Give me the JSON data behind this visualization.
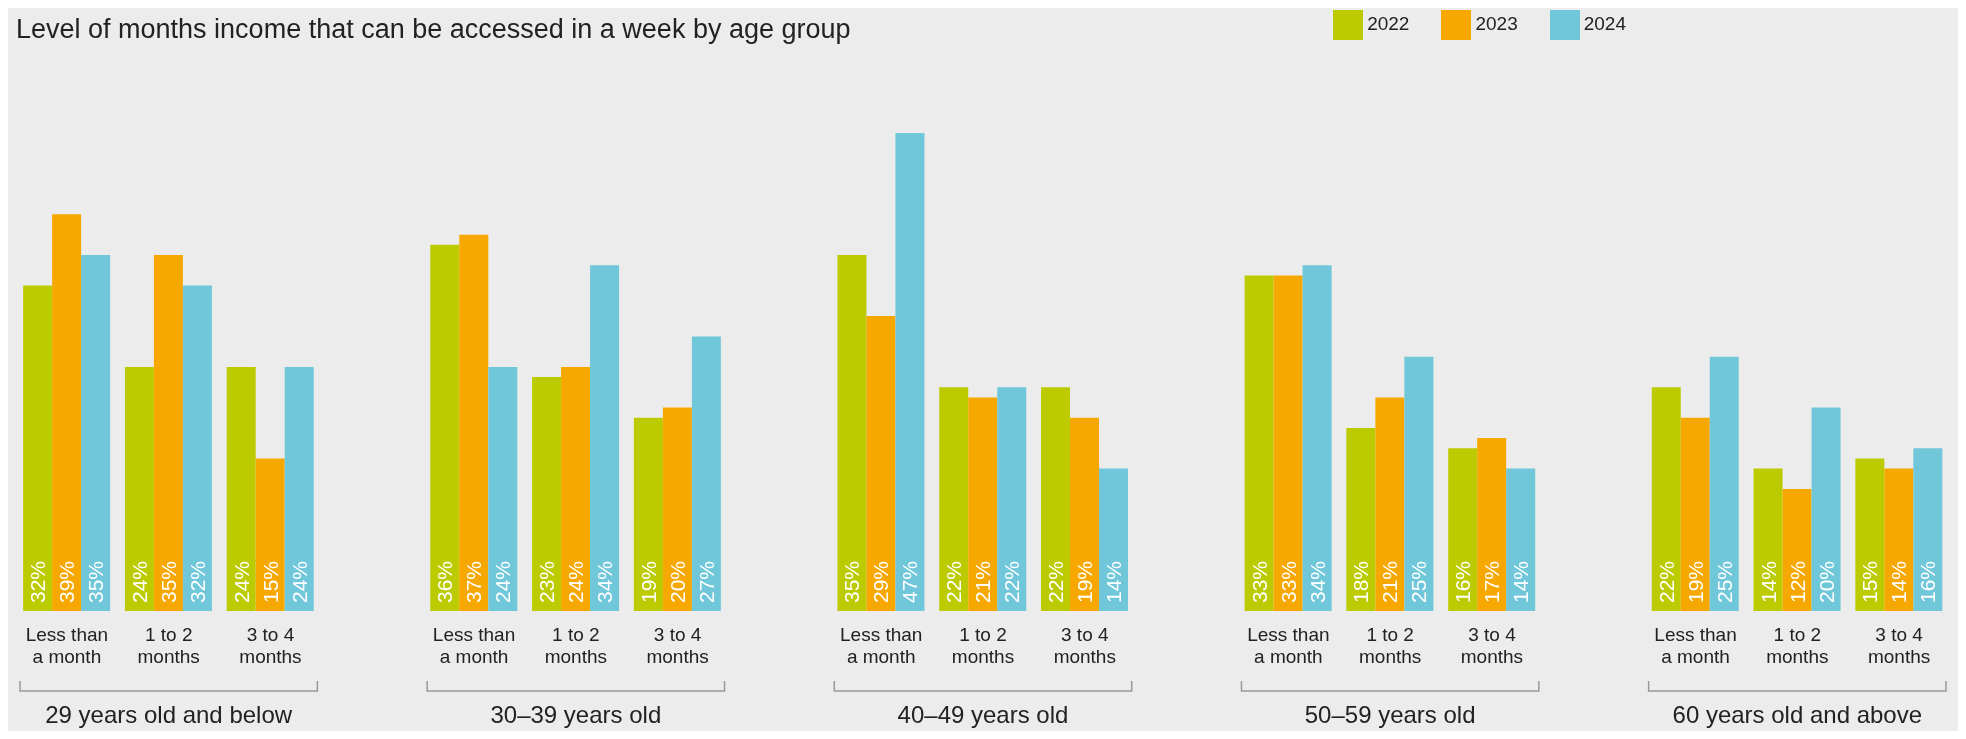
{
  "chart_data": {
    "type": "bar",
    "title": "Level of months income that can be accessed in a week by age group",
    "categories": [
      "Less than a month",
      "1 to 2 months",
      "3 to 4 months",
      "Less than a month",
      "1 to 2 months",
      "3 to 4 months",
      "Less than a month",
      "1 to 2 months",
      "3 to 4 months",
      "Less than a month",
      "1 to 2 months",
      "3 to 4 months",
      "Less than a month",
      "1 to 2 months",
      "3 to 4 months"
    ],
    "series": [
      {
        "name": "2022",
        "color": "#bccb00",
        "values": [
          32,
          24,
          24,
          36,
          23,
          19,
          35,
          22,
          22,
          33,
          18,
          16,
          22,
          14,
          15
        ],
        "value_labels": [
          "32%",
          "24%",
          "24%",
          "36%",
          "23%",
          "19%",
          "35%",
          "22%",
          "22%",
          "33%",
          "18%",
          "16%",
          "22%",
          "14%",
          "15%"
        ]
      },
      {
        "name": "2023",
        "color": "#f7a800",
        "values": [
          39,
          35,
          15,
          37,
          24,
          20,
          29,
          21,
          19,
          33,
          21,
          17,
          19,
          12,
          14
        ],
        "value_labels": [
          "39%",
          "35%",
          "15%",
          "37%",
          "24%",
          "20%",
          "29%",
          "21%",
          "19%",
          "33%",
          "21%",
          "17%",
          "19%",
          "12%",
          "14%"
        ]
      },
      {
        "name": "2024",
        "color": "#6fc7d9",
        "values": [
          35,
          32,
          24,
          24,
          34,
          27,
          47,
          22,
          14,
          34,
          25,
          14,
          25,
          20,
          16
        ],
        "value_labels": [
          "35%",
          "32%",
          "24%",
          "24%",
          "34%",
          "27%",
          "47%",
          "22%",
          "14%",
          "34%",
          "25%",
          "14%",
          "25%",
          "20%",
          "16%"
        ]
      }
    ],
    "annotations": [
      "29 years old and below",
      "30–39 years old",
      "40–49 years old",
      "50–59 years old",
      "60 years old and above"
    ],
    "legend": "top right",
    "grid": false
  }
}
